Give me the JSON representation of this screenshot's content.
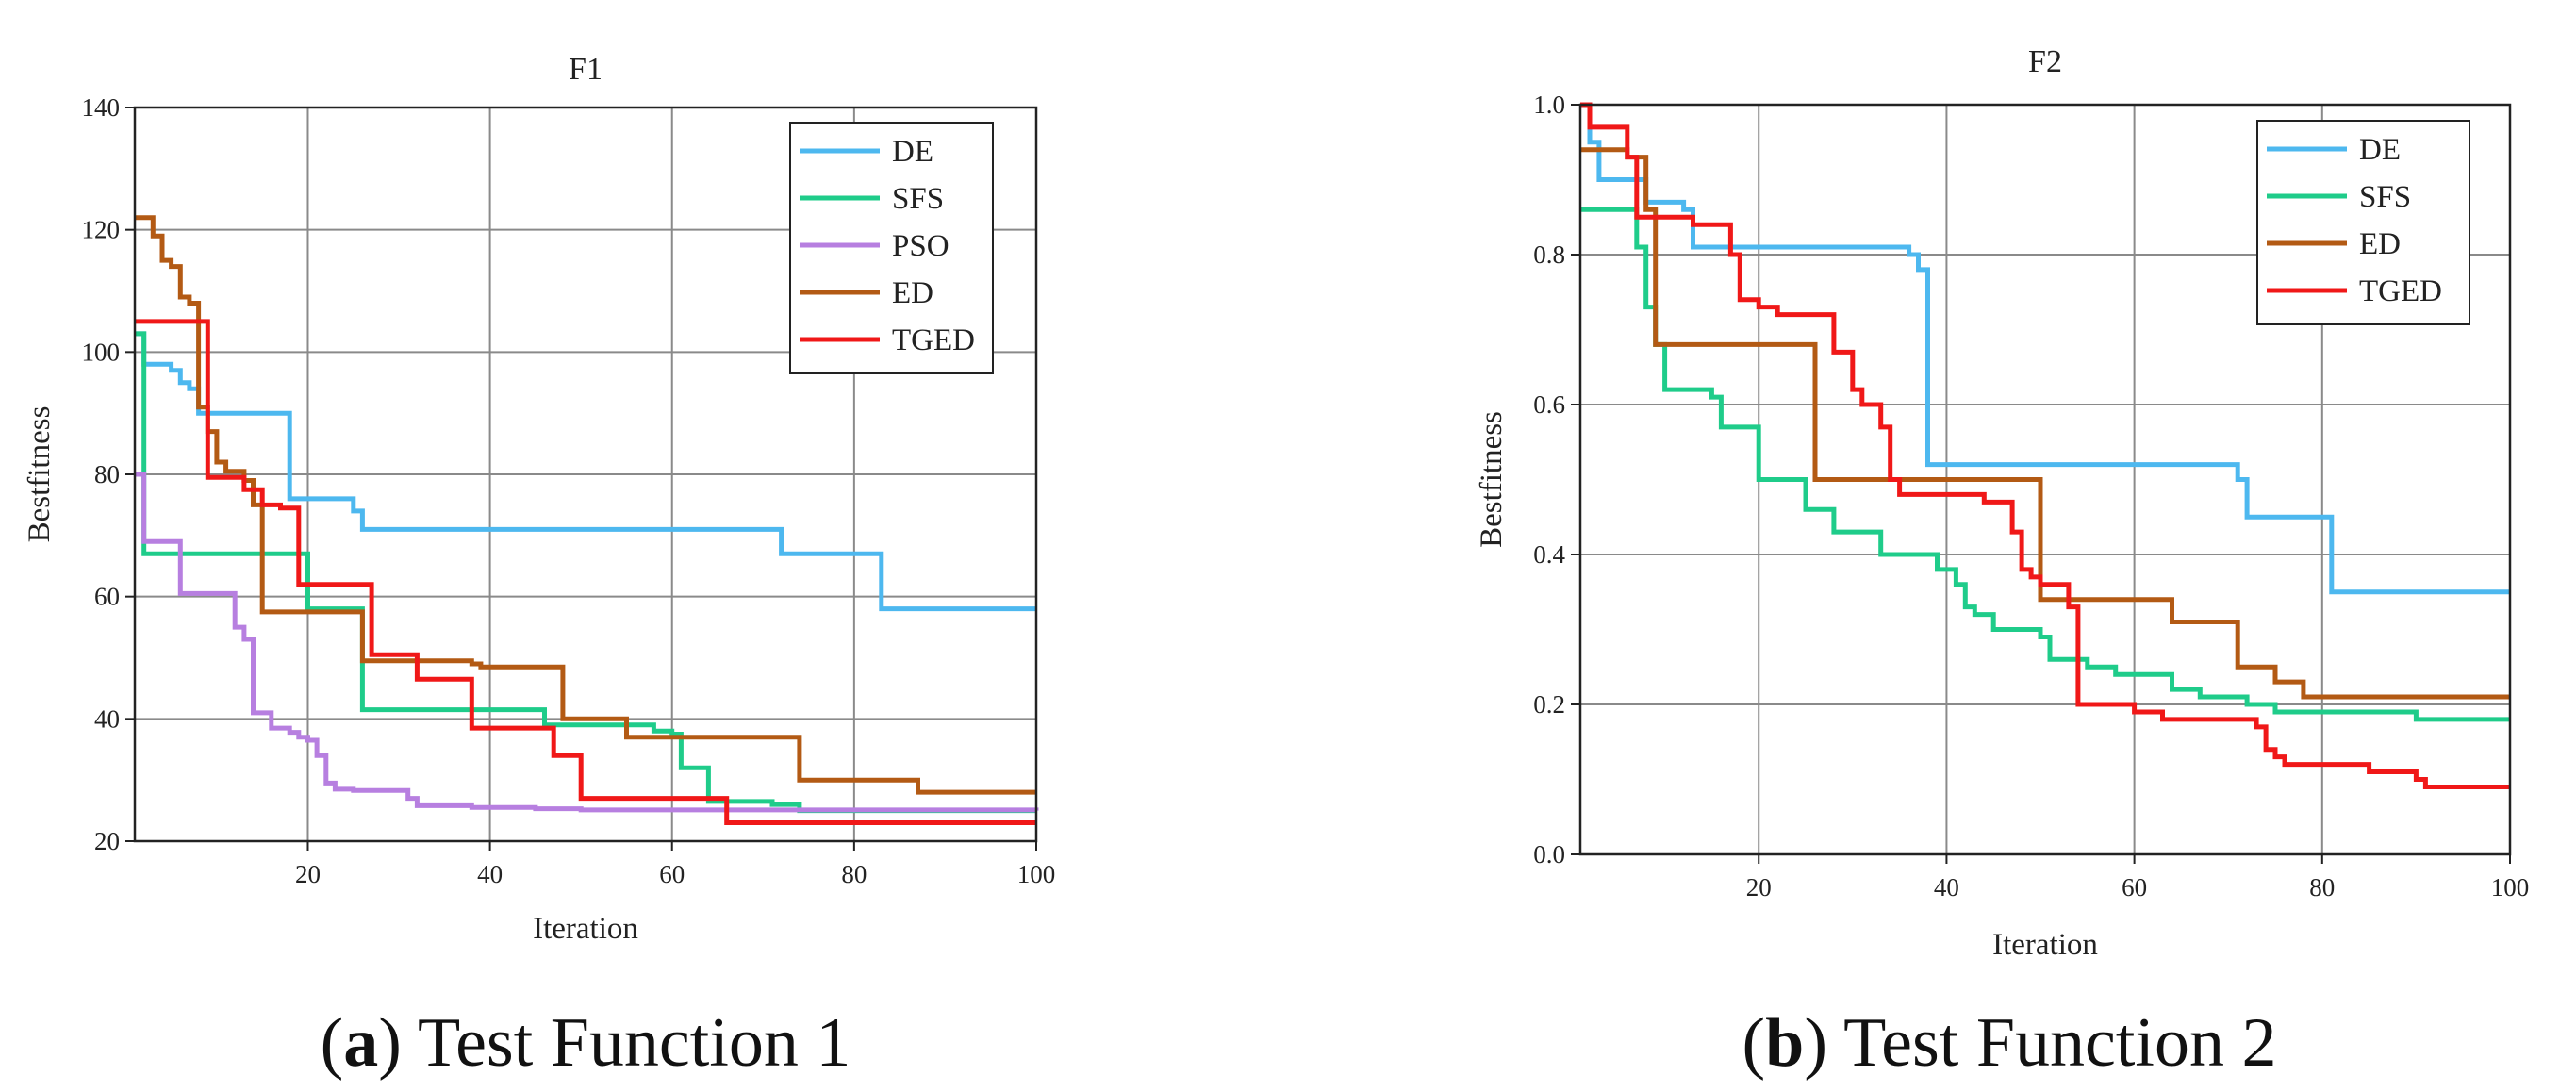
{
  "chart_data": [
    {
      "type": "line",
      "title": "F1",
      "xlabel": "Iteration",
      "ylabel": "Bestfitness",
      "xlim": [
        1,
        100
      ],
      "ylim": [
        20,
        140
      ],
      "xticks": [
        20,
        40,
        60,
        80,
        100
      ],
      "yticks": [
        20,
        40,
        60,
        80,
        100,
        120,
        140
      ],
      "grid": true,
      "legend_position": "top-right",
      "caption_prefix": "a",
      "caption_rest": " Test Function 1",
      "series": [
        {
          "name": "DE",
          "color": "#4db8ef",
          "x": [
            1,
            2,
            5,
            6,
            7,
            8,
            10,
            11,
            17,
            18,
            24,
            25,
            26,
            70,
            71,
            72,
            82,
            83,
            100
          ],
          "y": [
            103,
            98,
            97,
            95,
            94,
            90,
            90,
            90,
            90,
            76,
            76,
            74,
            71,
            71,
            71,
            67,
            67,
            58,
            58
          ]
        },
        {
          "name": "SFS",
          "color": "#1fcc8a",
          "x": [
            1,
            2,
            19,
            20,
            25,
            26,
            45,
            46,
            57,
            58,
            60,
            61,
            63,
            64,
            70,
            71,
            73,
            74,
            100
          ],
          "y": [
            103,
            67,
            67,
            58,
            58,
            41.5,
            41.5,
            39,
            39,
            38,
            37.5,
            32,
            32,
            26.5,
            26.5,
            26,
            26,
            25,
            25
          ]
        },
        {
          "name": "PSO",
          "color": "#b77fe0",
          "x": [
            1,
            2,
            5,
            6,
            11,
            12,
            13,
            14,
            16,
            18,
            19,
            20,
            21,
            22,
            23,
            25,
            30,
            31,
            32,
            38,
            45,
            50,
            100
          ],
          "y": [
            80,
            69,
            69,
            60.5,
            60.5,
            55,
            53,
            41,
            38.5,
            37.8,
            37,
            36.5,
            34,
            29.5,
            28.5,
            28.3,
            28.3,
            27,
            25.8,
            25.5,
            25.3,
            25.1,
            25
          ]
        },
        {
          "name": "ED",
          "color": "#b35a14",
          "x": [
            1,
            2,
            3,
            4,
            5,
            6,
            7,
            8,
            9,
            10,
            11,
            13,
            14,
            15,
            21,
            22,
            26,
            27,
            38,
            39,
            47,
            48,
            54,
            55,
            73,
            74,
            86,
            87,
            100
          ],
          "y": [
            122,
            122,
            119,
            115,
            114,
            109,
            108,
            91,
            87,
            82,
            80.5,
            79,
            75,
            57.5,
            57.5,
            57.5,
            49.5,
            49.5,
            49,
            48.5,
            48.5,
            40,
            40,
            37,
            37,
            30,
            30,
            28,
            28
          ]
        },
        {
          "name": "TGED",
          "color": "#f01818",
          "x": [
            1,
            8,
            9,
            12,
            13,
            14,
            15,
            16,
            17,
            18,
            19,
            26,
            27,
            31,
            32,
            37,
            38,
            46,
            47,
            49,
            50,
            65,
            66,
            100
          ],
          "y": [
            105,
            105,
            79.5,
            79.5,
            77.5,
            77.5,
            75,
            75,
            74.5,
            74.5,
            62,
            62,
            50.5,
            50.5,
            46.5,
            46.5,
            38.5,
            38.5,
            34,
            34,
            27,
            27,
            23,
            23
          ]
        }
      ]
    },
    {
      "type": "line",
      "title": "F2",
      "xlabel": "Iteration",
      "ylabel": "Bestfitness",
      "xlim": [
        1,
        100
      ],
      "ylim": [
        0.0,
        1.0
      ],
      "xticks": [
        20,
        40,
        60,
        80,
        100
      ],
      "yticks": [
        0.0,
        0.2,
        0.4,
        0.6,
        0.8,
        1.0
      ],
      "ytick_labels": [
        "0.0",
        "0.2",
        "0.4",
        "0.6",
        "0.8",
        "1.0"
      ],
      "grid": true,
      "legend_position": "top-right",
      "caption_prefix": "b",
      "caption_rest": " Test Function 2",
      "series": [
        {
          "name": "DE",
          "color": "#4db8ef",
          "x": [
            1,
            2,
            3,
            4,
            8,
            10,
            12,
            13,
            14,
            35,
            36,
            37,
            38,
            70,
            71,
            72,
            79,
            80,
            81,
            100
          ],
          "y": [
            1.0,
            0.95,
            0.9,
            0.9,
            0.87,
            0.87,
            0.86,
            0.81,
            0.81,
            0.81,
            0.8,
            0.78,
            0.52,
            0.52,
            0.5,
            0.45,
            0.45,
            0.45,
            0.35,
            0.35
          ]
        },
        {
          "name": "SFS",
          "color": "#1fcc8a",
          "x": [
            1,
            6,
            7,
            8,
            9,
            10,
            12,
            15,
            16,
            19,
            20,
            24,
            25,
            27,
            28,
            32,
            33,
            36,
            39,
            40,
            41,
            42,
            43,
            45,
            48,
            50,
            51,
            54,
            55,
            57,
            58,
            61,
            64,
            67,
            72,
            75,
            80,
            85,
            90,
            100
          ],
          "y": [
            0.86,
            0.86,
            0.81,
            0.73,
            0.68,
            0.62,
            0.62,
            0.61,
            0.57,
            0.57,
            0.5,
            0.5,
            0.46,
            0.46,
            0.43,
            0.43,
            0.4,
            0.4,
            0.38,
            0.38,
            0.36,
            0.33,
            0.32,
            0.3,
            0.3,
            0.29,
            0.26,
            0.26,
            0.25,
            0.25,
            0.24,
            0.24,
            0.22,
            0.21,
            0.2,
            0.19,
            0.19,
            0.19,
            0.18,
            0.18
          ]
        },
        {
          "name": "ED",
          "color": "#b35a14",
          "x": [
            1,
            5,
            6,
            7,
            8,
            9,
            25,
            26,
            49,
            50,
            63,
            64,
            70,
            71,
            74,
            75,
            77,
            78,
            100
          ],
          "y": [
            0.94,
            0.94,
            0.93,
            0.93,
            0.86,
            0.68,
            0.68,
            0.5,
            0.5,
            0.34,
            0.34,
            0.31,
            0.31,
            0.25,
            0.25,
            0.23,
            0.23,
            0.21,
            0.21
          ]
        },
        {
          "name": "TGED",
          "color": "#f01818",
          "x": [
            1,
            2,
            3,
            6,
            7,
            8,
            10,
            13,
            16,
            17,
            18,
            19,
            20,
            22,
            23,
            28,
            29,
            30,
            31,
            32,
            33,
            34,
            35,
            36,
            37,
            38,
            43,
            44,
            46,
            47,
            48,
            49,
            50,
            52,
            53,
            54,
            59,
            60,
            63,
            72,
            73,
            74,
            75,
            76,
            80,
            84,
            85,
            88,
            89,
            90,
            91,
            94,
            98,
            100
          ],
          "y": [
            1.0,
            0.97,
            0.97,
            0.93,
            0.85,
            0.85,
            0.85,
            0.84,
            0.84,
            0.8,
            0.74,
            0.74,
            0.73,
            0.72,
            0.72,
            0.67,
            0.67,
            0.62,
            0.6,
            0.6,
            0.57,
            0.5,
            0.48,
            0.48,
            0.48,
            0.48,
            0.48,
            0.47,
            0.47,
            0.43,
            0.38,
            0.37,
            0.36,
            0.36,
            0.33,
            0.2,
            0.2,
            0.19,
            0.18,
            0.18,
            0.17,
            0.14,
            0.13,
            0.12,
            0.12,
            0.12,
            0.11,
            0.11,
            0.11,
            0.1,
            0.09,
            0.09,
            0.09,
            0.09
          ]
        }
      ]
    }
  ]
}
